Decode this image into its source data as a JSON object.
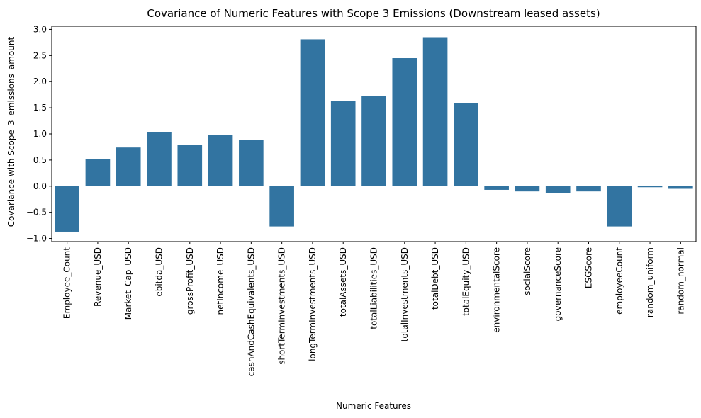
{
  "chart_data": {
    "type": "bar",
    "title": "Covariance of Numeric Features with Scope 3 Emissions (Downstream leased assets)",
    "xlabel": "Numeric Features",
    "ylabel": "Covariance with Scope_3_emissions_amount",
    "categories": [
      "Employee_Count",
      "Revenue_USD",
      "Market_Cap_USD",
      "ebitda_USD",
      "grossProfit_USD",
      "netIncome_USD",
      "cashAndCashEquivalents_USD",
      "shortTermInvestments_USD",
      "longTermInvestments_USD",
      "totalAssets_USD",
      "totalLiabilities_USD",
      "totalInvestments_USD",
      "totalDebt_USD",
      "totalEquity_USD",
      "environmentalScore",
      "socialScore",
      "governanceScore",
      "ESGScore",
      "employeeCount",
      "random_uniform",
      "random_normal"
    ],
    "values": [
      -0.87,
      0.52,
      0.74,
      1.04,
      0.79,
      0.98,
      0.88,
      -0.77,
      2.81,
      1.63,
      1.72,
      2.45,
      2.85,
      1.59,
      -0.07,
      -0.1,
      -0.13,
      -0.1,
      -0.77,
      -0.02,
      -0.05
    ],
    "ylim": [
      -1.06,
      3.06
    ],
    "yticks": [
      -1.0,
      -0.5,
      0.0,
      0.5,
      1.0,
      1.5,
      2.0,
      2.5,
      3.0
    ],
    "ytick_labels": [
      "−1.0",
      "−0.5",
      "0.0",
      "0.5",
      "1.0",
      "1.5",
      "2.0",
      "2.5",
      "3.0"
    ],
    "bar_color": "#3274a1",
    "grid": false,
    "legend": "none"
  }
}
